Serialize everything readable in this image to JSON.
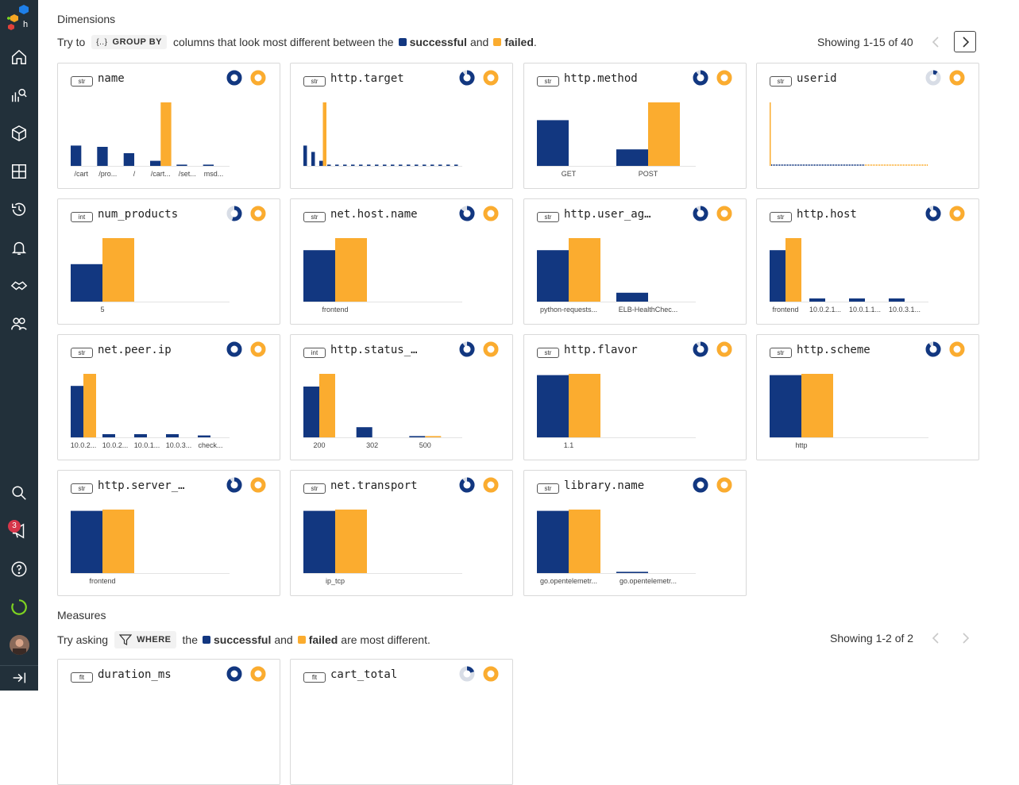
{
  "colors": {
    "success": "#123780",
    "failed": "#fbac2f",
    "baseline": "#e3e3e3",
    "sidebar": "#22303a"
  },
  "sidebar": {
    "items": [
      {
        "name": "home-icon"
      },
      {
        "name": "query-icon"
      },
      {
        "name": "datasets-icon"
      },
      {
        "name": "boards-icon"
      },
      {
        "name": "history-icon"
      },
      {
        "name": "triggers-icon"
      },
      {
        "name": "slos-icon"
      },
      {
        "name": "team-icon"
      }
    ],
    "bottom": [
      {
        "name": "search-icon"
      },
      {
        "name": "announcements-icon"
      },
      {
        "name": "help-icon"
      },
      {
        "name": "status-icon"
      }
    ],
    "badge_count": "3"
  },
  "dimensions": {
    "title": "Dimensions",
    "hint_pre": "Try to",
    "pill_icon": "{..}",
    "pill_label": "GROUP BY",
    "hint_mid": "columns that look most different between the",
    "successful": "successful",
    "and": "and",
    "failed": "failed",
    "period": ".",
    "showing": "Showing 1-15 of 40"
  },
  "measures": {
    "title": "Measures",
    "hint_pre": "Try asking",
    "pill_label": "WHERE",
    "hint_the": "the",
    "successful": "successful",
    "and": "and",
    "failed": "failed",
    "hint_post": "are most different.",
    "showing": "Showing 1-2 of 2"
  },
  "cards": [
    {
      "type": "str",
      "title": "name",
      "ring": 1.0,
      "chart_data": {
        "type": "bar",
        "categories": [
          "/cart",
          "/pro...",
          "/",
          "/cart...",
          "/set...",
          "msd..."
        ],
        "success": [
          32,
          30,
          20,
          8,
          2,
          2
        ],
        "failed": [
          0,
          0,
          0,
          100,
          0,
          0
        ]
      }
    },
    {
      "type": "str",
      "title": "http.target",
      "ring": 0.9,
      "chart_data": {
        "type": "bar",
        "categories": [],
        "success": [
          32,
          22,
          8,
          2,
          2,
          2,
          2,
          2,
          2,
          2,
          2,
          2,
          2,
          2,
          2,
          2,
          2,
          2,
          2,
          2
        ],
        "failed": [
          0,
          0,
          100,
          0,
          0,
          0,
          0,
          0,
          0,
          0,
          0,
          0,
          0,
          0,
          0,
          0,
          0,
          0,
          0,
          0
        ]
      }
    },
    {
      "type": "str",
      "title": "http.method",
      "ring": 0.9,
      "chart_data": {
        "type": "bar",
        "categories": [
          "GET",
          "POST"
        ],
        "success": [
          72,
          26
        ],
        "failed": [
          0,
          100
        ]
      }
    },
    {
      "type": "str",
      "title": "userid",
      "ring": 0.1,
      "chart_data": {
        "type": "bar",
        "categories": [],
        "style": "dense"
      }
    },
    {
      "type": "int",
      "title": "num_products",
      "ring": 0.55,
      "chart_data": {
        "type": "bar",
        "categories": [
          "5"
        ],
        "success": [
          59
        ],
        "failed": [
          100
        ]
      }
    },
    {
      "type": "str",
      "title": "net.host.name",
      "ring": 0.85,
      "chart_data": {
        "type": "bar",
        "categories": [
          "frontend"
        ],
        "success": [
          81
        ],
        "failed": [
          100
        ]
      }
    },
    {
      "type": "str",
      "title": "http.user_ag…",
      "ring": 0.9,
      "chart_data": {
        "type": "bar",
        "categories": [
          "python-requests...",
          "ELB-HealthChec..."
        ],
        "success": [
          81,
          14
        ],
        "failed": [
          100,
          0
        ]
      }
    },
    {
      "type": "str",
      "title": "http.host",
      "ring": 0.9,
      "chart_data": {
        "type": "bar",
        "categories": [
          "frontend",
          "10.0.2.1...",
          "10.0.1.1...",
          "10.0.3.1..."
        ],
        "success": [
          81,
          5,
          5,
          5
        ],
        "failed": [
          100,
          0,
          0,
          0
        ]
      }
    },
    {
      "type": "str",
      "title": "net.peer.ip",
      "ring": 1.0,
      "chart_data": {
        "type": "bar",
        "categories": [
          "10.0.2...",
          "10.0.2...",
          "10.0.1...",
          "10.0.3...",
          "check..."
        ],
        "success": [
          81,
          5,
          5,
          5,
          3
        ],
        "failed": [
          100,
          0,
          0,
          0,
          0
        ]
      }
    },
    {
      "type": "int",
      "title": "http.status_…",
      "ring": 0.9,
      "chart_data": {
        "type": "bar",
        "categories": [
          "200",
          "302",
          "500"
        ],
        "success": [
          80,
          16,
          2
        ],
        "failed": [
          100,
          0,
          2
        ]
      }
    },
    {
      "type": "str",
      "title": "http.flavor",
      "ring": 0.9,
      "chart_data": {
        "type": "bar",
        "categories": [
          "1.1"
        ],
        "success": [
          98
        ],
        "failed": [
          100
        ]
      }
    },
    {
      "type": "str",
      "title": "http.scheme",
      "ring": 0.9,
      "chart_data": {
        "type": "bar",
        "categories": [
          "http"
        ],
        "success": [
          98
        ],
        "failed": [
          100
        ]
      }
    },
    {
      "type": "str",
      "title": "http.server_…",
      "ring": 0.9,
      "chart_data": {
        "type": "bar",
        "categories": [
          "frontend"
        ],
        "success": [
          98
        ],
        "failed": [
          100
        ]
      }
    },
    {
      "type": "str",
      "title": "net.transport",
      "ring": 0.9,
      "chart_data": {
        "type": "bar",
        "categories": [
          "ip_tcp"
        ],
        "success": [
          98
        ],
        "failed": [
          100
        ]
      }
    },
    {
      "type": "str",
      "title": "library.name",
      "ring": 1.0,
      "chart_data": {
        "type": "bar",
        "categories": [
          "go.opentelemetr...",
          "go.opentelemetr..."
        ],
        "success": [
          98,
          2
        ],
        "failed": [
          100,
          0
        ]
      }
    }
  ],
  "measure_cards": [
    {
      "type": "flt",
      "title": "duration_ms",
      "ring": 1.0
    },
    {
      "type": "flt",
      "title": "cart_total",
      "ring": 0.2
    }
  ]
}
